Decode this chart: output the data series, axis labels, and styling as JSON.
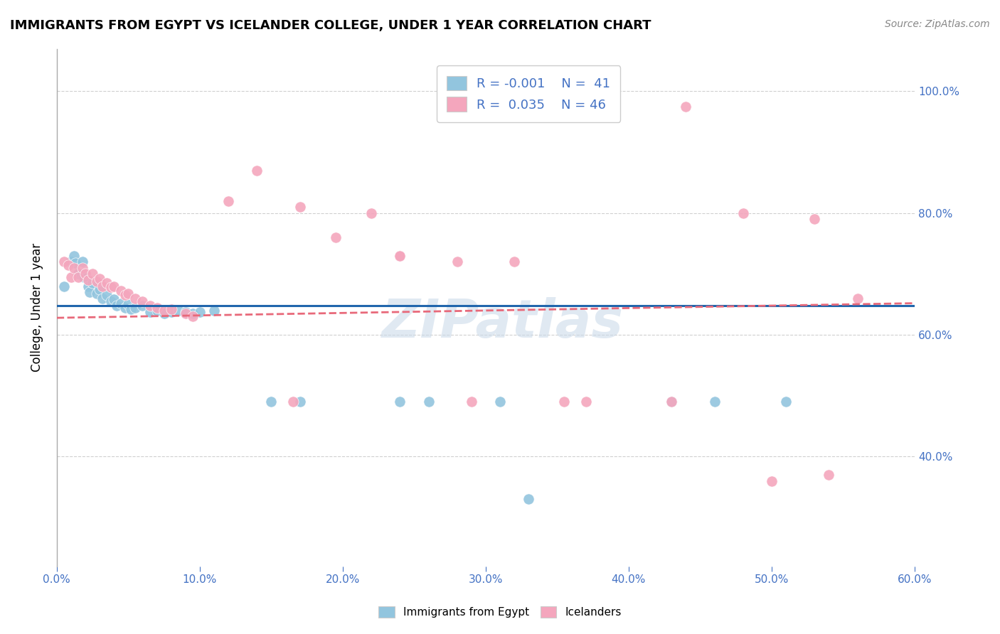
{
  "title": "IMMIGRANTS FROM EGYPT VS ICELANDER COLLEGE, UNDER 1 YEAR CORRELATION CHART",
  "source_text": "Source: ZipAtlas.com",
  "ylabel": "College, Under 1 year",
  "xmin": 0.0,
  "xmax": 0.6,
  "ymin": 0.22,
  "ymax": 1.07,
  "xtick_labels": [
    "0.0%",
    "10.0%",
    "20.0%",
    "30.0%",
    "40.0%",
    "50.0%",
    "60.0%"
  ],
  "xtick_values": [
    0.0,
    0.1,
    0.2,
    0.3,
    0.4,
    0.5,
    0.6
  ],
  "ytick_labels": [
    "40.0%",
    "60.0%",
    "80.0%",
    "100.0%"
  ],
  "ytick_values": [
    0.4,
    0.6,
    0.8,
    1.0
  ],
  "blue_color": "#92c5de",
  "pink_color": "#f4a6bd",
  "blue_line_color": "#2166ac",
  "pink_line_color": "#e8697a",
  "legend_blue_label": "Immigrants from Egypt",
  "legend_pink_label": "Icelanders",
  "R_blue": -0.001,
  "N_blue": 41,
  "R_pink": 0.035,
  "N_pink": 46,
  "watermark": "ZIPatlas",
  "blue_points": [
    [
      0.005,
      0.68
    ],
    [
      0.01,
      0.72
    ],
    [
      0.012,
      0.73
    ],
    [
      0.013,
      0.718
    ],
    [
      0.015,
      0.7
    ],
    [
      0.018,
      0.72
    ],
    [
      0.019,
      0.695
    ],
    [
      0.022,
      0.68
    ],
    [
      0.023,
      0.67
    ],
    [
      0.025,
      0.685
    ],
    [
      0.028,
      0.668
    ],
    [
      0.03,
      0.675
    ],
    [
      0.032,
      0.66
    ],
    [
      0.035,
      0.665
    ],
    [
      0.038,
      0.655
    ],
    [
      0.04,
      0.658
    ],
    [
      0.042,
      0.648
    ],
    [
      0.045,
      0.652
    ],
    [
      0.048,
      0.645
    ],
    [
      0.05,
      0.65
    ],
    [
      0.052,
      0.642
    ],
    [
      0.055,
      0.645
    ],
    [
      0.06,
      0.648
    ],
    [
      0.065,
      0.638
    ],
    [
      0.07,
      0.64
    ],
    [
      0.075,
      0.635
    ],
    [
      0.08,
      0.638
    ],
    [
      0.085,
      0.64
    ],
    [
      0.09,
      0.638
    ],
    [
      0.095,
      0.635
    ],
    [
      0.1,
      0.638
    ],
    [
      0.11,
      0.64
    ],
    [
      0.15,
      0.49
    ],
    [
      0.17,
      0.49
    ],
    [
      0.24,
      0.49
    ],
    [
      0.26,
      0.49
    ],
    [
      0.31,
      0.49
    ],
    [
      0.43,
      0.49
    ],
    [
      0.46,
      0.49
    ],
    [
      0.51,
      0.49
    ],
    [
      0.33,
      0.33
    ]
  ],
  "pink_points": [
    [
      0.005,
      0.72
    ],
    [
      0.008,
      0.715
    ],
    [
      0.01,
      0.695
    ],
    [
      0.012,
      0.71
    ],
    [
      0.015,
      0.695
    ],
    [
      0.018,
      0.71
    ],
    [
      0.02,
      0.7
    ],
    [
      0.022,
      0.69
    ],
    [
      0.025,
      0.7
    ],
    [
      0.028,
      0.688
    ],
    [
      0.03,
      0.692
    ],
    [
      0.032,
      0.68
    ],
    [
      0.035,
      0.685
    ],
    [
      0.038,
      0.678
    ],
    [
      0.04,
      0.68
    ],
    [
      0.045,
      0.672
    ],
    [
      0.048,
      0.665
    ],
    [
      0.05,
      0.668
    ],
    [
      0.055,
      0.66
    ],
    [
      0.06,
      0.655
    ],
    [
      0.065,
      0.648
    ],
    [
      0.07,
      0.645
    ],
    [
      0.075,
      0.64
    ],
    [
      0.08,
      0.642
    ],
    [
      0.09,
      0.635
    ],
    [
      0.095,
      0.63
    ],
    [
      0.12,
      0.82
    ],
    [
      0.14,
      0.87
    ],
    [
      0.17,
      0.81
    ],
    [
      0.195,
      0.76
    ],
    [
      0.22,
      0.8
    ],
    [
      0.24,
      0.73
    ],
    [
      0.28,
      0.72
    ],
    [
      0.32,
      0.72
    ],
    [
      0.37,
      0.49
    ],
    [
      0.43,
      0.49
    ],
    [
      0.44,
      0.975
    ],
    [
      0.48,
      0.8
    ],
    [
      0.53,
      0.79
    ],
    [
      0.54,
      0.37
    ],
    [
      0.56,
      0.66
    ],
    [
      0.165,
      0.49
    ],
    [
      0.24,
      0.73
    ],
    [
      0.29,
      0.49
    ],
    [
      0.355,
      0.49
    ],
    [
      0.5,
      0.36
    ]
  ]
}
